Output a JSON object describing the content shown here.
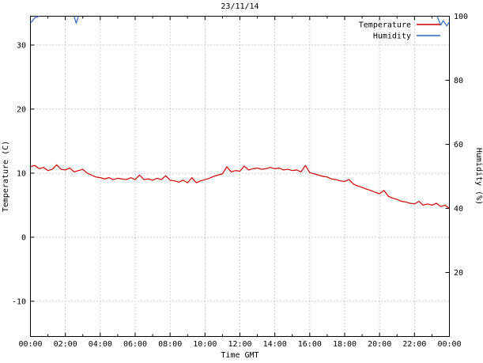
{
  "chart_data": {
    "type": "line",
    "title": "23/11/14",
    "xlabel": "Time GMT",
    "ylabel_left": "Temperature (C)",
    "ylabel_right": "Humidity (%)",
    "grid": true,
    "legend_position": "top-right",
    "x_axis": {
      "unit": "hours",
      "min": 0,
      "max": 24,
      "tick_hours": [
        0,
        2,
        4,
        6,
        8,
        10,
        12,
        14,
        16,
        18,
        20,
        22,
        24
      ],
      "tick_labels": [
        "00:00",
        "02:00",
        "04:00",
        "06:00",
        "08:00",
        "10:00",
        "12:00",
        "14:00",
        "16:00",
        "18:00",
        "20:00",
        "22:00",
        "00:00"
      ]
    },
    "y_left": {
      "min": -15.5,
      "max": 34.5,
      "ticks": [
        -10,
        0,
        10,
        20,
        30
      ]
    },
    "y_right": {
      "min": 0,
      "max": 100,
      "ticks": [
        20,
        40,
        60,
        80,
        100
      ]
    },
    "legend": [
      {
        "label": "Temperature",
        "color": "#cc0000"
      },
      {
        "label": "Humidity",
        "color": "#3366cc"
      }
    ],
    "series": [
      {
        "name": "Temperature",
        "axis": "left",
        "color": "#cc0000",
        "x_start": 0,
        "x_step": 0.25,
        "values": [
          11.0,
          11.2,
          10.7,
          10.9,
          10.4,
          10.6,
          11.3,
          10.6,
          10.5,
          10.8,
          10.2,
          10.4,
          10.6,
          10.0,
          9.7,
          9.4,
          9.3,
          9.1,
          9.3,
          9.0,
          9.2,
          9.1,
          9.0,
          9.3,
          9.0,
          9.7,
          9.0,
          9.1,
          8.9,
          9.2,
          9.0,
          9.6,
          8.9,
          8.8,
          8.6,
          8.9,
          8.5,
          9.3,
          8.5,
          8.8,
          9.0,
          9.2,
          9.5,
          9.7,
          9.9,
          11.0,
          10.2,
          10.4,
          10.3,
          11.1,
          10.5,
          10.7,
          10.8,
          10.6,
          10.7,
          10.9,
          10.7,
          10.8,
          10.5,
          10.6,
          10.4,
          10.5,
          10.2,
          11.2,
          10.1,
          9.9,
          9.7,
          9.5,
          9.4,
          9.1,
          9.0,
          8.8,
          8.7,
          9.0,
          8.3,
          8.0,
          7.8,
          7.5,
          7.3,
          7.0,
          6.8,
          7.3,
          6.4,
          6.1,
          5.9,
          5.6,
          5.5,
          5.3,
          5.2,
          5.6,
          5.0,
          5.2,
          5.0,
          5.3,
          4.8,
          5.0,
          4.5
        ]
      },
      {
        "name": "Humidity",
        "axis": "right",
        "color": "#3366cc",
        "segments": [
          [
            [
              0.0,
              97.8
            ],
            [
              0.25,
              99.5
            ],
            [
              0.5,
              100
            ]
          ],
          [
            [
              2.5,
              100
            ],
            [
              2.62,
              97.8
            ],
            [
              2.75,
              100
            ]
          ],
          [
            [
              23.3,
              100
            ],
            [
              23.5,
              97.2
            ],
            [
              23.65,
              98.6
            ],
            [
              23.85,
              97.0
            ],
            [
              24.0,
              98.2
            ]
          ]
        ]
      }
    ]
  },
  "colors": {
    "background": "#ffffff",
    "plot_border": "#000000",
    "grid": "#9b9b9b",
    "text": "#000000",
    "temperature": "#cc0000",
    "humidity": "#3366cc"
  }
}
